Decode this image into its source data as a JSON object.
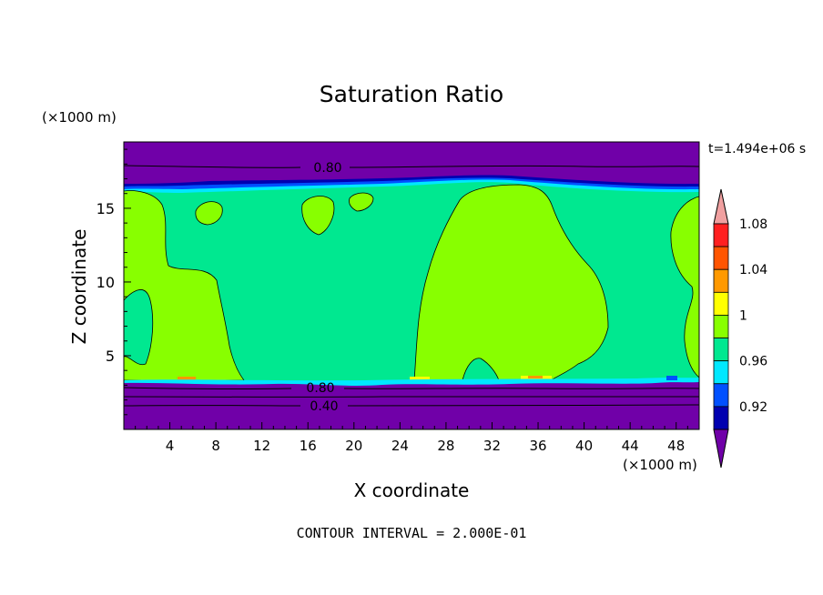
{
  "chart_data": {
    "type": "heatmap",
    "title": "Saturation Ratio",
    "xlabel": "X coordinate",
    "ylabel": "Z coordinate",
    "x_unit": "(×1000 m)",
    "z_unit": "(×1000 m)",
    "time_label": "t=1.494e+06 s",
    "footer": "CONTOUR INTERVAL = 2.000E-01",
    "xlim": [
      0,
      50
    ],
    "ylim": [
      0,
      19.5
    ],
    "x_ticks": [
      4,
      8,
      12,
      16,
      20,
      24,
      28,
      32,
      36,
      40,
      44,
      48
    ],
    "x_tick_labels": [
      "4",
      "8",
      "12",
      "16",
      "20",
      "24",
      "28",
      "32",
      "36",
      "40",
      "44",
      "48"
    ],
    "y_ticks": [
      5,
      10,
      15
    ],
    "y_tick_labels": [
      "5",
      "10",
      "15"
    ],
    "contour_labels": [
      {
        "text": "0.80",
        "x": 17.5,
        "z": 18.2
      },
      {
        "text": "0.80",
        "x": 17.5,
        "z": 3.0
      },
      {
        "text": "0.40",
        "x": 17.5,
        "z": 1.7
      }
    ],
    "colorbar": {
      "labels": [
        "0.92",
        "0.96",
        "1",
        "1.04",
        "1.08"
      ],
      "colors": [
        "#7000a8",
        "#0000b0",
        "#0050ff",
        "#00e8ff",
        "#00e890",
        "#88ff00",
        "#ffff00",
        "#ff9900",
        "#ff5500",
        "#ff2020",
        "#f0a0a0"
      ],
      "under_color": "#7000a8",
      "over_color": "#f0a0a0"
    },
    "regions": [
      {
        "name": "upper-dry-layer",
        "level": "<0.90",
        "z_range": [
          16.6,
          19.5
        ]
      },
      {
        "name": "lower-dry-layer",
        "level": "<0.90",
        "z_range": [
          0,
          3.3
        ]
      },
      {
        "name": "near-saturated-background",
        "level": "0.98-1.00",
        "z_range": [
          3.5,
          16.6
        ]
      },
      {
        "name": "supersaturated-left-plume",
        "level": "1.00-1.02",
        "x_range": [
          0,
          10
        ]
      },
      {
        "name": "supersaturated-central-plume",
        "level": "1.00-1.02",
        "x_range": [
          25,
          42
        ]
      },
      {
        "name": "supersaturated-right-edge",
        "level": "1.00-1.02",
        "x_range": [
          47,
          50
        ]
      }
    ]
  }
}
